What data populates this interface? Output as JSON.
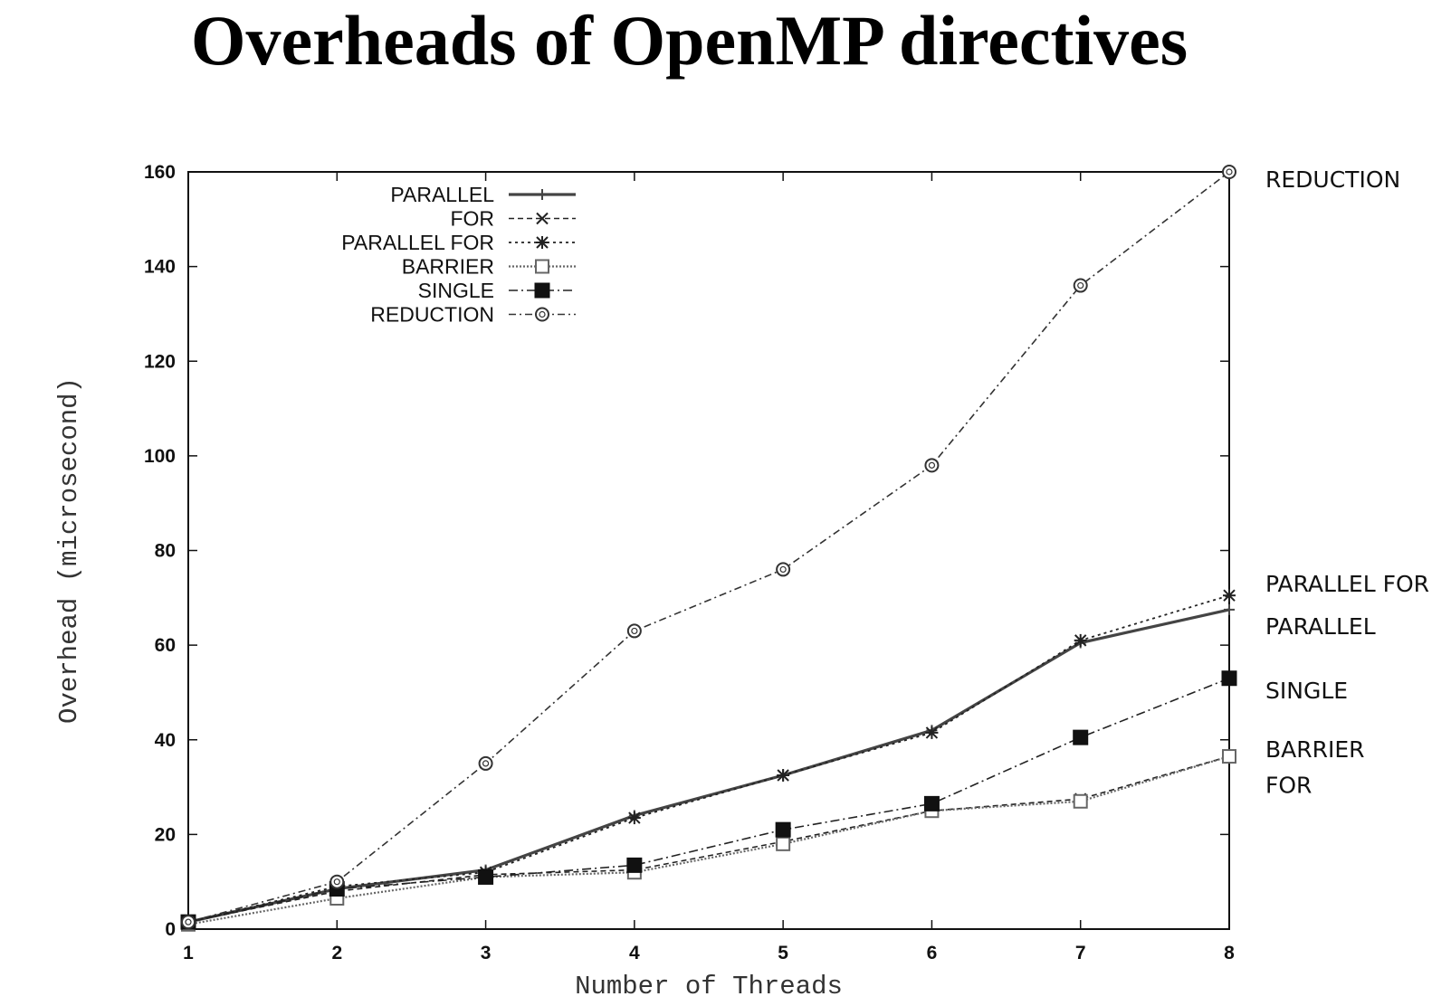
{
  "page": {
    "title": "Overheads of OpenMP directives"
  },
  "chart_data": {
    "type": "line",
    "title": "Overheads of OpenMP directives",
    "xlabel": "Number of Threads",
    "ylabel": "Overhead (microsecond)",
    "x": [
      1,
      2,
      3,
      4,
      5,
      6,
      7,
      8
    ],
    "xlim": [
      1,
      8
    ],
    "ylim": [
      0,
      160
    ],
    "xticks": [
      "1",
      "2",
      "3",
      "4",
      "5",
      "6",
      "7",
      "8"
    ],
    "yticks": [
      "0",
      "20",
      "40",
      "60",
      "80",
      "100",
      "120",
      "140",
      "160"
    ],
    "grid": false,
    "legend_position": "top-left",
    "series": [
      {
        "name": "PARALLEL",
        "values": [
          1.5,
          8.5,
          12.5,
          24,
          32.5,
          42,
          60.5,
          67.5
        ],
        "marker": "plus",
        "dash": "solid",
        "color": "#444444",
        "width": 3.2
      },
      {
        "name": "FOR",
        "values": [
          1.5,
          8,
          11.5,
          12.5,
          18.5,
          25,
          27.5,
          36.5
        ],
        "marker": "cross",
        "dash": "6,4",
        "color": "#222222",
        "width": 1.6
      },
      {
        "name": "PARALLEL FOR",
        "values": [
          1.5,
          9,
          12,
          23.5,
          32.5,
          41.5,
          61,
          70.5
        ],
        "marker": "star",
        "dash": "3,4",
        "color": "#222222",
        "width": 1.8
      },
      {
        "name": "BARRIER",
        "values": [
          1,
          6.5,
          11,
          12,
          18,
          25,
          27,
          36.5
        ],
        "marker": "square-open",
        "dash": "2,2",
        "color": "#666666",
        "width": 2.2
      },
      {
        "name": "SINGLE",
        "values": [
          1.5,
          8.5,
          11,
          13.5,
          21,
          26.5,
          40.5,
          53
        ],
        "marker": "square-filled",
        "dash": "10,4,2,4",
        "color": "#222222",
        "width": 1.6
      },
      {
        "name": "REDUCTION",
        "values": [
          1.5,
          10,
          35,
          63,
          76,
          98,
          136,
          160
        ],
        "marker": "circle",
        "dash": "8,4,2,4",
        "color": "#333333",
        "width": 1.6
      }
    ],
    "annotations": [
      {
        "text": "REDUCTION",
        "y": 158.5
      },
      {
        "text": "PARALLEL FOR",
        "y": 73
      },
      {
        "text": "PARALLEL",
        "y": 64
      },
      {
        "text": "SINGLE",
        "y": 50.5
      },
      {
        "text": "BARRIER",
        "y": 38
      },
      {
        "text": "FOR",
        "y": 30.5
      }
    ]
  }
}
